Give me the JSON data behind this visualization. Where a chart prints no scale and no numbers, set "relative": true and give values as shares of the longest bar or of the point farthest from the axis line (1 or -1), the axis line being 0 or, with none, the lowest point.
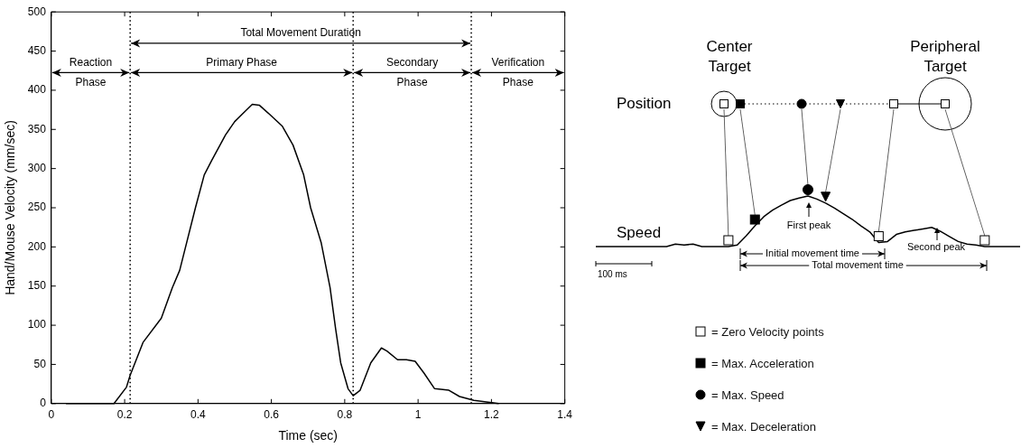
{
  "chart_data": [
    {
      "type": "line",
      "xlabel": "Time (sec)",
      "ylabel": "Hand/Mouse Velocity (mm/sec)",
      "x": [
        0.04,
        0.1,
        0.171,
        0.205,
        0.215,
        0.25,
        0.3,
        0.33,
        0.35,
        0.393,
        0.417,
        0.437,
        0.475,
        0.5,
        0.524,
        0.548,
        0.567,
        0.591,
        0.63,
        0.659,
        0.688,
        0.707,
        0.736,
        0.76,
        0.775,
        0.789,
        0.809,
        0.823,
        0.842,
        0.871,
        0.9,
        0.915,
        0.944,
        0.968,
        0.992,
        1.016,
        1.045,
        1.084,
        1.113,
        1.152,
        1.22
      ],
      "values": [
        0,
        0,
        0,
        21,
        36,
        78,
        109,
        148,
        170,
        250,
        292,
        310,
        343,
        360,
        371,
        382,
        381,
        371,
        354,
        330,
        292,
        250,
        205,
        148,
        96,
        52,
        19,
        10,
        17,
        52,
        71,
        67,
        56,
        56,
        54,
        39,
        19,
        17,
        9,
        4,
        0
      ],
      "color": "#000000",
      "xlim": [
        0,
        1.4
      ],
      "xticks": [
        0,
        0.2,
        0.4,
        0.6,
        0.8,
        1,
        1.2,
        1.4
      ],
      "ylim": [
        0,
        500
      ],
      "yticks": [
        0,
        50,
        100,
        150,
        200,
        250,
        300,
        350,
        400,
        450,
        500
      ],
      "ref_lines": [
        {
          "axis": "x",
          "value": 0.215,
          "line_style": "dotted"
        },
        {
          "axis": "x",
          "value": 0.823,
          "line_style": "dotted"
        },
        {
          "axis": "x",
          "value": 1.145,
          "line_style": "dotted"
        }
      ],
      "annotations": [
        "Total Movement Duration",
        "Reaction\nPhase",
        "Primary Phase",
        "Secondary\nPhase",
        "Verification\nPhase"
      ]
    },
    {
      "type": "line",
      "relative": true,
      "ylabel": "Speed",
      "categories": [
        null,
        null,
        null,
        null,
        null,
        null,
        null,
        null,
        null,
        null,
        null,
        null,
        null,
        null,
        null,
        null,
        null,
        null,
        null,
        null,
        null,
        null,
        null,
        null,
        null,
        null,
        null,
        null,
        null,
        null,
        null,
        null,
        null,
        null,
        null,
        null,
        null,
        null,
        null,
        null,
        null,
        null,
        null,
        null,
        null,
        null,
        null,
        null,
        null
      ],
      "color": "#000000",
      "values": [
        0,
        0,
        0,
        0,
        0,
        0,
        0,
        0,
        0,
        0.05,
        0.03,
        0.05,
        0,
        0,
        0,
        0,
        0.03,
        0.21,
        0.41,
        0.59,
        0.72,
        0.82,
        0.91,
        0.96,
        1,
        0.94,
        0.86,
        0.76,
        0.65,
        0.54,
        0.41,
        0.29,
        0.08,
        0.1,
        0.24,
        0.29,
        0.32,
        0.35,
        0.38,
        0.3,
        0.2,
        0.1,
        0.05,
        0.03,
        0,
        0,
        0,
        0,
        0
      ],
      "annotations": [
        "Center\nTarget",
        "Peripheral\nTarget",
        "Position",
        "First peak",
        "Second peak",
        "Initial movement time",
        "Total movement time",
        "100 ms",
        "= Zero Velocity points",
        "= Max. Acceleration",
        "= Max. Speed",
        "= Max. Deceleration"
      ]
    }
  ]
}
